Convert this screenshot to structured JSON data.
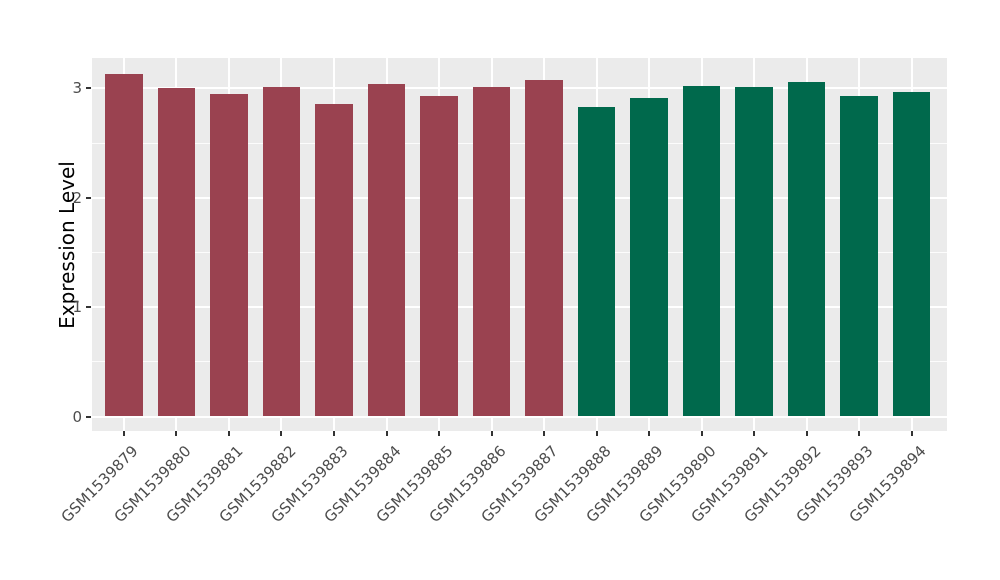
{
  "chart_data": {
    "type": "bar",
    "title": "",
    "xlabel": "",
    "ylabel": "Expression Level",
    "yticks": [
      0,
      1,
      2,
      3
    ],
    "y_minor_ticks": [
      0.5,
      1.5,
      2.5
    ],
    "ylim": [
      0,
      3.28
    ],
    "grid": "white major+minor gridlines on gray panel, ggplot style",
    "legend_position": "none",
    "x_tick_angle_deg": 45,
    "colors": {
      "panel_background": "#EBEBEB",
      "gridline": "#FFFFFF",
      "tick_mark": "#333333",
      "tick_text": "#4D4D4D",
      "axis_title_text": "#000000",
      "group_red": "#9A4250",
      "group_green": "#00694C"
    },
    "categories": [
      "GSM1539879",
      "GSM1539880",
      "GSM1539881",
      "GSM1539882",
      "GSM1539883",
      "GSM1539884",
      "GSM1539885",
      "GSM1539886",
      "GSM1539887",
      "GSM1539888",
      "GSM1539889",
      "GSM1539890",
      "GSM1539891",
      "GSM1539892",
      "GSM1539893",
      "GSM1539894"
    ],
    "bars": [
      {
        "label": "GSM1539879",
        "value": 3.13,
        "color": "#9A4250"
      },
      {
        "label": "GSM1539880",
        "value": 3.0,
        "color": "#9A4250"
      },
      {
        "label": "GSM1539881",
        "value": 2.95,
        "color": "#9A4250"
      },
      {
        "label": "GSM1539882",
        "value": 3.01,
        "color": "#9A4250"
      },
      {
        "label": "GSM1539883",
        "value": 2.86,
        "color": "#9A4250"
      },
      {
        "label": "GSM1539884",
        "value": 3.04,
        "color": "#9A4250"
      },
      {
        "label": "GSM1539885",
        "value": 2.93,
        "color": "#9A4250"
      },
      {
        "label": "GSM1539886",
        "value": 3.01,
        "color": "#9A4250"
      },
      {
        "label": "GSM1539887",
        "value": 3.08,
        "color": "#9A4250"
      },
      {
        "label": "GSM1539888",
        "value": 2.83,
        "color": "#00694C"
      },
      {
        "label": "GSM1539889",
        "value": 2.91,
        "color": "#00694C"
      },
      {
        "label": "GSM1539890",
        "value": 3.02,
        "color": "#00694C"
      },
      {
        "label": "GSM1539891",
        "value": 3.01,
        "color": "#00694C"
      },
      {
        "label": "GSM1539892",
        "value": 3.06,
        "color": "#00694C"
      },
      {
        "label": "GSM1539893",
        "value": 2.93,
        "color": "#00694C"
      },
      {
        "label": "GSM1539894",
        "value": 2.97,
        "color": "#00694C"
      }
    ]
  }
}
